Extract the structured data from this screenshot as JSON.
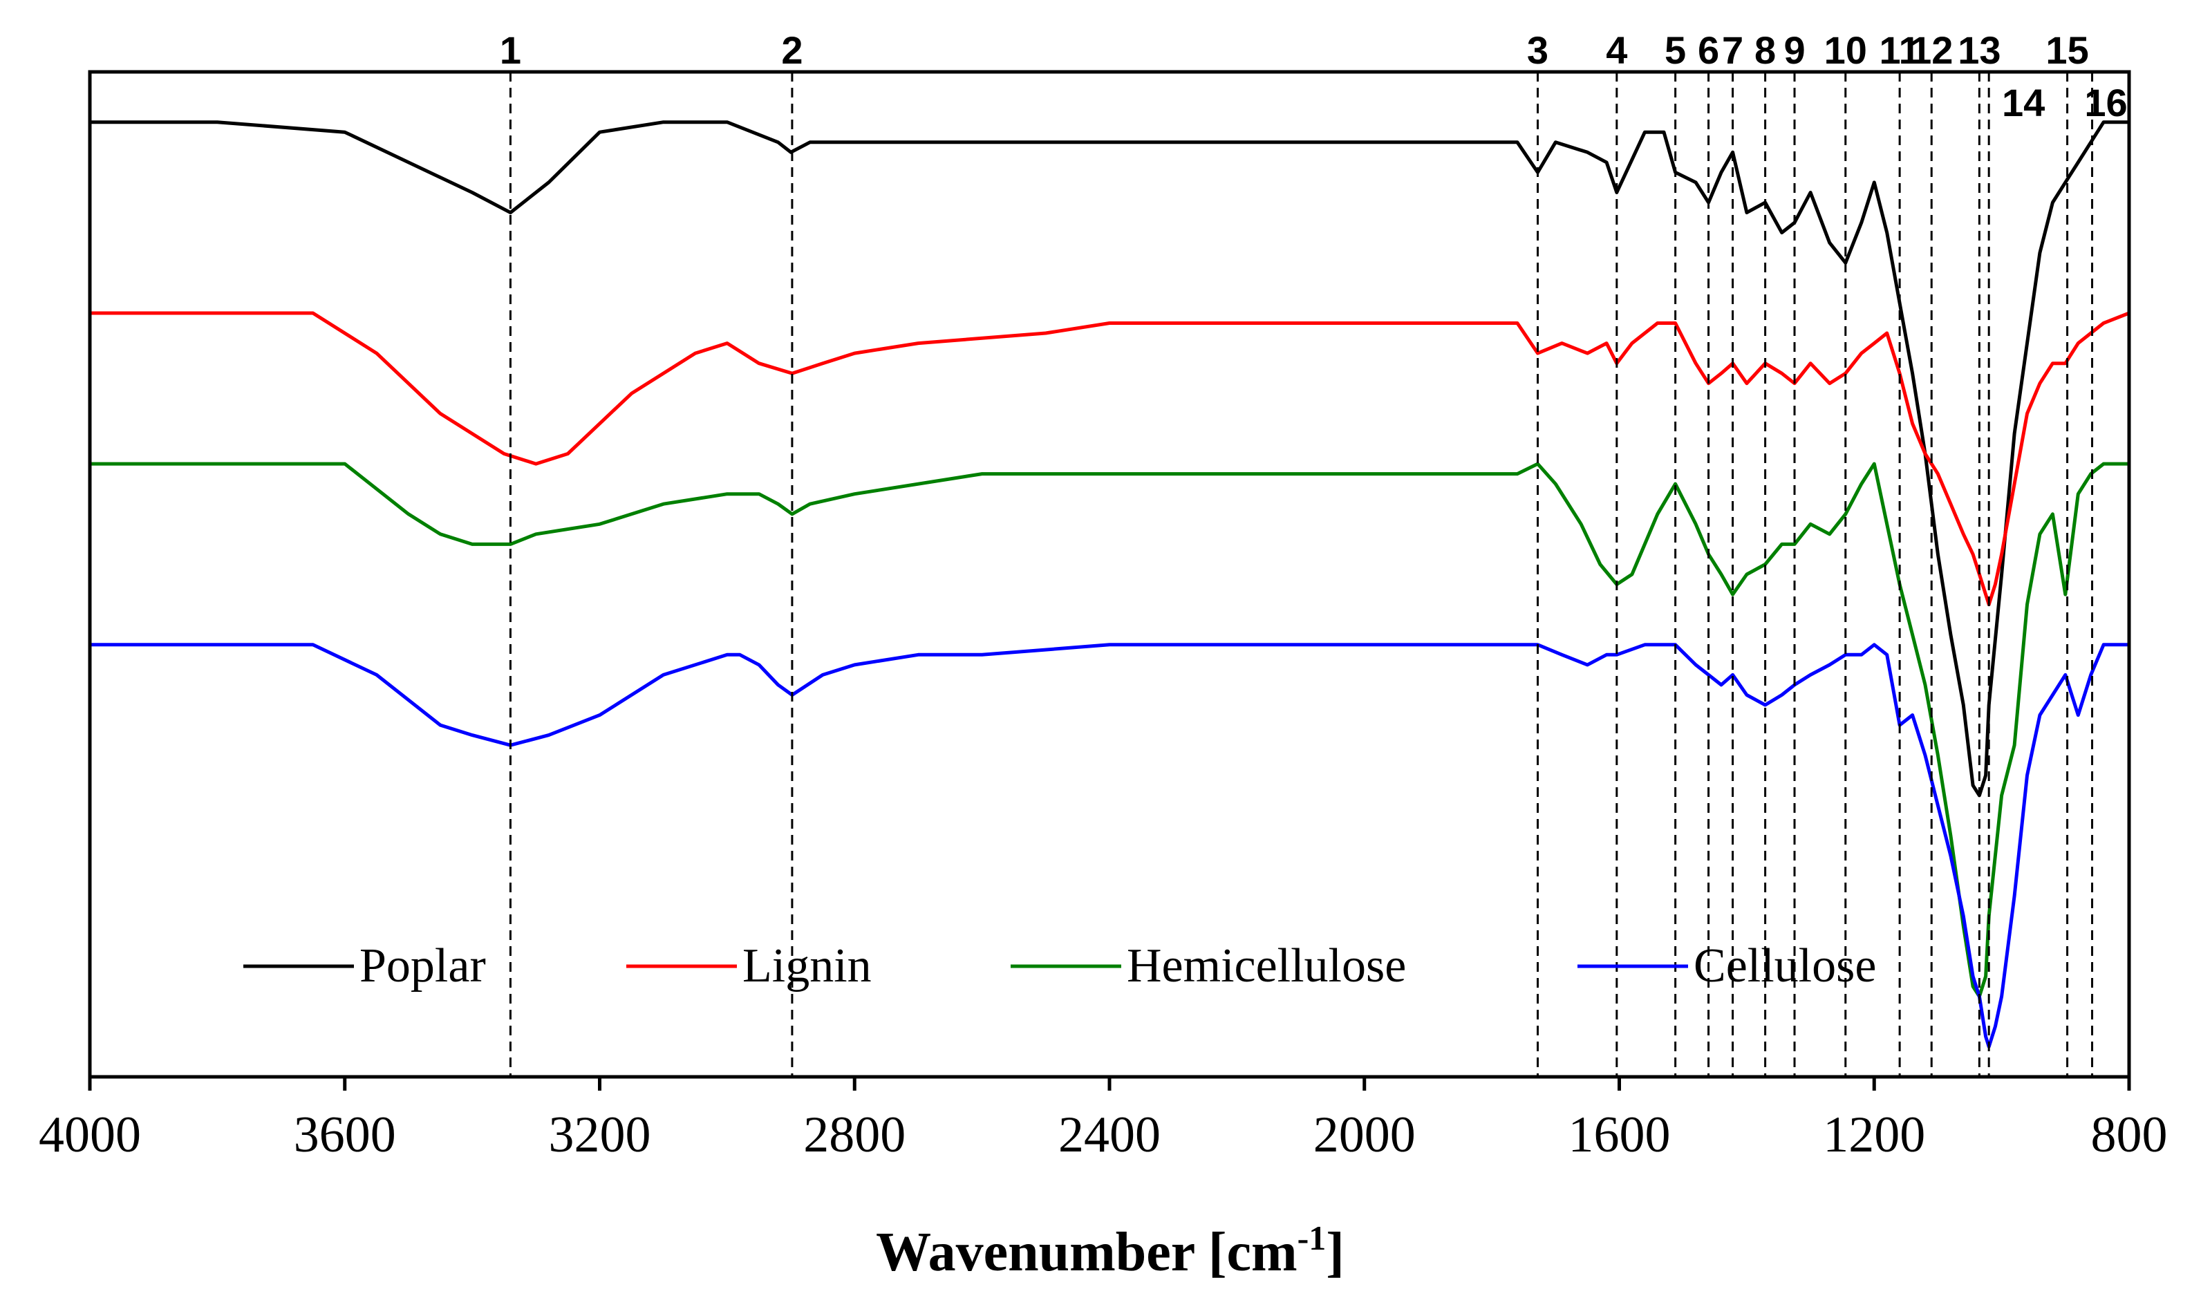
{
  "chart_data": {
    "type": "line",
    "title": "",
    "xlabel": "Wavenumber [cm",
    "xlabel_superscript": "-1",
    "xlabel_suffix": "]",
    "ylabel": "",
    "x_reversed": true,
    "xlim": [
      4000,
      800
    ],
    "ylim": [
      0,
      100
    ],
    "x_ticks": [
      4000,
      3600,
      3200,
      2800,
      2400,
      2000,
      1600,
      1200,
      800
    ],
    "x_tick_labels": [
      "4000",
      "3600",
      "3200",
      "2800",
      "2400",
      "2000",
      "1600",
      "1200",
      "800"
    ],
    "legend_position": "bottom",
    "peak_markers": [
      {
        "label": "1",
        "x": 3340
      },
      {
        "label": "2",
        "x": 2898
      },
      {
        "label": "3",
        "x": 1728
      },
      {
        "label": "4",
        "x": 1604
      },
      {
        "label": "5",
        "x": 1512
      },
      {
        "label": "6",
        "x": 1460
      },
      {
        "label": "7",
        "x": 1422
      },
      {
        "label": "8",
        "x": 1371
      },
      {
        "label": "9",
        "x": 1325
      },
      {
        "label": "10",
        "x": 1245
      },
      {
        "label": "11",
        "x": 1160
      },
      {
        "label": "12",
        "x": 1110
      },
      {
        "label": "13",
        "x": 1035
      },
      {
        "label": "14",
        "x": 1020
      },
      {
        "label": "15",
        "x": 897
      },
      {
        "label": "16",
        "x": 858
      }
    ],
    "series": [
      {
        "name": "Poplar",
        "color": "#000000",
        "x": [
          4000,
          3800,
          3600,
          3500,
          3400,
          3340,
          3280,
          3200,
          3100,
          3000,
          2920,
          2900,
          2870,
          2800,
          2600,
          2400,
          2000,
          1850,
          1760,
          1728,
          1700,
          1650,
          1620,
          1604,
          1560,
          1530,
          1512,
          1480,
          1460,
          1440,
          1422,
          1400,
          1371,
          1345,
          1325,
          1300,
          1270,
          1245,
          1220,
          1200,
          1180,
          1160,
          1140,
          1120,
          1100,
          1080,
          1060,
          1045,
          1035,
          1025,
          1020,
          1000,
          980,
          960,
          940,
          920,
          900,
          880,
          860,
          840,
          800
        ],
        "values": [
          95,
          95,
          94,
          91,
          88,
          86,
          89,
          94,
          95,
          95,
          93,
          92,
          93,
          93,
          93,
          93,
          93,
          93,
          93,
          90,
          93,
          92,
          91,
          88,
          94,
          94,
          90,
          89,
          87,
          90,
          92,
          86,
          87,
          84,
          85,
          88,
          83,
          81,
          85,
          89,
          84,
          77,
          70,
          62,
          52,
          44,
          37,
          29,
          28,
          30,
          37,
          50,
          64,
          73,
          82,
          87,
          89,
          91,
          93,
          95,
          95
        ]
      },
      {
        "name": "Lignin",
        "color": "#ff0000",
        "x": [
          4000,
          3800,
          3650,
          3550,
          3450,
          3350,
          3300,
          3250,
          3150,
          3050,
          3000,
          2950,
          2898,
          2850,
          2800,
          2700,
          2500,
          2400,
          2000,
          1800,
          1760,
          1728,
          1690,
          1650,
          1620,
          1604,
          1580,
          1540,
          1512,
          1480,
          1460,
          1440,
          1422,
          1400,
          1371,
          1345,
          1325,
          1300,
          1270,
          1245,
          1220,
          1200,
          1180,
          1160,
          1140,
          1120,
          1100,
          1080,
          1060,
          1045,
          1035,
          1025,
          1020,
          1010,
          1000,
          980,
          960,
          940,
          920,
          900,
          880,
          860,
          840,
          800
        ],
        "values": [
          76,
          76,
          76,
          72,
          66,
          62,
          61,
          62,
          68,
          72,
          73,
          71,
          70,
          71,
          72,
          73,
          74,
          75,
          75,
          75,
          75,
          72,
          73,
          72,
          73,
          71,
          73,
          75,
          75,
          71,
          69,
          70,
          71,
          69,
          71,
          70,
          69,
          71,
          69,
          70,
          72,
          73,
          74,
          70,
          65,
          62,
          60,
          57,
          54,
          52,
          50,
          48,
          47,
          49,
          52,
          59,
          66,
          69,
          71,
          71,
          73,
          74,
          75,
          76
        ]
      },
      {
        "name": "Hemicellulose",
        "color": "#008000",
        "x": [
          4000,
          3800,
          3700,
          3600,
          3500,
          3450,
          3400,
          3340,
          3300,
          3200,
          3100,
          3000,
          2950,
          2920,
          2898,
          2870,
          2800,
          2600,
          2400,
          2200,
          2000,
          1800,
          1760,
          1728,
          1700,
          1660,
          1630,
          1604,
          1580,
          1540,
          1512,
          1480,
          1460,
          1440,
          1422,
          1400,
          1371,
          1345,
          1325,
          1300,
          1270,
          1245,
          1220,
          1200,
          1180,
          1160,
          1140,
          1120,
          1100,
          1080,
          1060,
          1045,
          1035,
          1025,
          1020,
          1000,
          980,
          960,
          940,
          920,
          900,
          880,
          860,
          840,
          800
        ],
        "values": [
          61,
          61,
          61,
          61,
          56,
          54,
          53,
          53,
          54,
          55,
          57,
          58,
          58,
          57,
          56,
          57,
          58,
          60,
          60,
          60,
          60,
          60,
          60,
          61,
          59,
          55,
          51,
          49,
          50,
          56,
          59,
          55,
          52,
          50,
          48,
          50,
          51,
          53,
          53,
          55,
          54,
          56,
          59,
          61,
          55,
          49,
          44,
          39,
          32,
          24,
          15,
          9,
          8,
          10,
          16,
          28,
          33,
          47,
          54,
          56,
          48,
          58,
          60,
          61,
          61
        ]
      },
      {
        "name": "Cellulose",
        "color": "#0000ff",
        "x": [
          4000,
          3800,
          3650,
          3550,
          3450,
          3400,
          3340,
          3280,
          3200,
          3100,
          3000,
          2980,
          2950,
          2920,
          2898,
          2850,
          2800,
          2700,
          2600,
          2400,
          2000,
          1800,
          1728,
          1690,
          1650,
          1620,
          1604,
          1560,
          1512,
          1480,
          1460,
          1440,
          1422,
          1400,
          1371,
          1345,
          1325,
          1300,
          1270,
          1245,
          1220,
          1200,
          1180,
          1160,
          1140,
          1120,
          1100,
          1080,
          1060,
          1045,
          1035,
          1025,
          1020,
          1010,
          1000,
          980,
          960,
          940,
          920,
          900,
          880,
          860,
          840,
          800
        ],
        "values": [
          43,
          43,
          43,
          40,
          35,
          34,
          33,
          34,
          36,
          40,
          42,
          42,
          41,
          39,
          38,
          40,
          41,
          42,
          42,
          43,
          43,
          43,
          43,
          42,
          41,
          42,
          42,
          43,
          43,
          41,
          40,
          39,
          40,
          38,
          37,
          38,
          39,
          40,
          41,
          42,
          42,
          43,
          42,
          35,
          36,
          32,
          27,
          22,
          16,
          10,
          8,
          4,
          3,
          5,
          8,
          18,
          30,
          36,
          38,
          40,
          36,
          40,
          43,
          43
        ]
      }
    ]
  }
}
